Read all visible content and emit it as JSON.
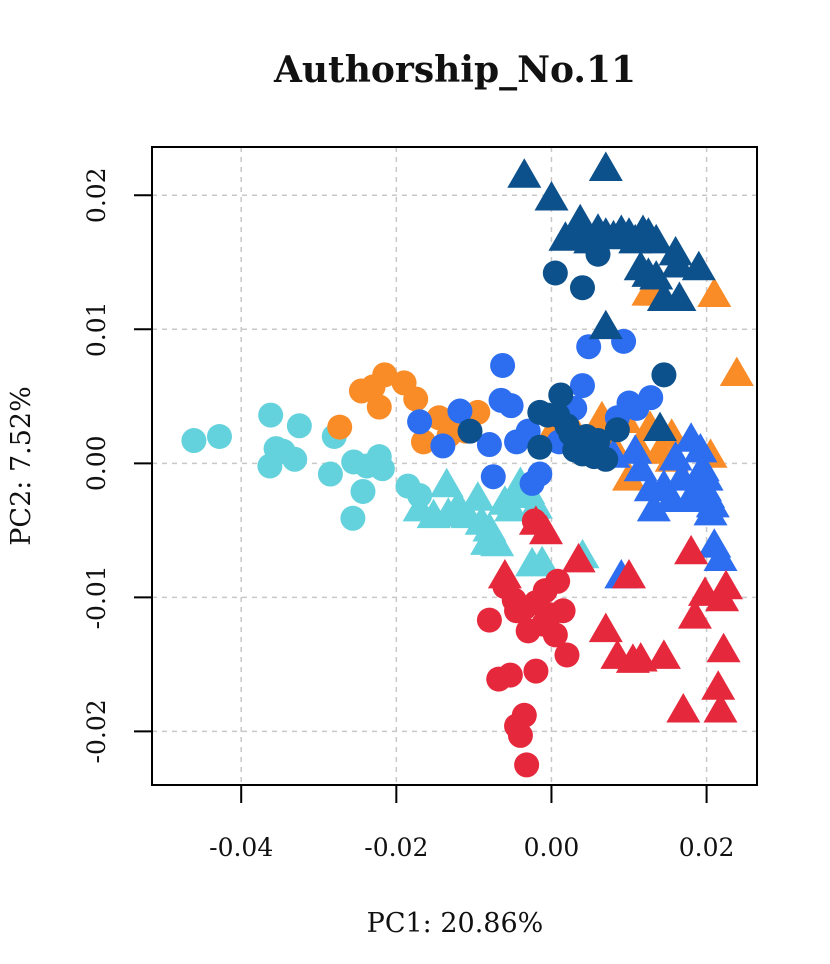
{
  "chart_data": {
    "type": "scatter",
    "title": "Authorship_No.11",
    "xlabel": "PC1: 20.86%",
    "ylabel": "PC2: 7.52%",
    "xlim": [
      -0.0515,
      0.0265
    ],
    "ylim": [
      -0.024,
      0.0236
    ],
    "xticks": [
      -0.04,
      -0.02,
      0.0,
      0.02
    ],
    "xtick_labels": [
      "-0.04",
      "-0.02",
      "0.00",
      "0.02"
    ],
    "yticks": [
      -0.02,
      -0.01,
      0.0,
      0.01,
      0.02
    ],
    "ytick_labels": [
      "-0.02",
      "-0.01",
      "0.00",
      "0.01",
      "0.02"
    ],
    "grid": true,
    "colors": {
      "cyan": "#64D2DC",
      "orange": "#FA8C28",
      "blue": "#2D6EF0",
      "navy": "#0C508C",
      "red": "#E6283C"
    },
    "series": [
      {
        "color": "#64D2DC",
        "marker": "circle",
        "points": [
          [
            -0.0461,
            0.0017
          ],
          [
            -0.0428,
            0.002
          ],
          [
            -0.0362,
            0.0036
          ],
          [
            -0.0355,
            0.0011
          ],
          [
            -0.0346,
            0.0009
          ],
          [
            -0.0363,
            -0.0002
          ],
          [
            -0.0331,
            0.0003
          ],
          [
            -0.0325,
            0.0028
          ],
          [
            -0.028,
            0.002
          ],
          [
            -0.0285,
            -0.0008
          ],
          [
            -0.0255,
            0.0001
          ],
          [
            -0.0238,
            -0.0002
          ],
          [
            -0.0222,
            0.0005
          ],
          [
            -0.0218,
            -0.0004
          ],
          [
            -0.0243,
            -0.0021
          ],
          [
            -0.0256,
            -0.0041
          ],
          [
            -0.0185,
            -0.0017
          ],
          [
            -0.017,
            -0.0024
          ]
        ]
      },
      {
        "color": "#64D2DC",
        "marker": "triangle",
        "points": [
          [
            -0.017,
            -0.0035
          ],
          [
            -0.0152,
            -0.004
          ],
          [
            -0.0133,
            -0.0039
          ],
          [
            -0.0135,
            -0.0017
          ],
          [
            -0.012,
            -0.0033
          ],
          [
            -0.0108,
            -0.004
          ],
          [
            -0.0095,
            -0.0027
          ],
          [
            -0.009,
            -0.0045
          ],
          [
            -0.008,
            -0.005
          ],
          [
            -0.007,
            -0.0061
          ],
          [
            -0.0083,
            -0.006
          ],
          [
            -0.006,
            -0.003
          ],
          [
            -0.0052,
            -0.0035
          ],
          [
            -0.0045,
            -0.0025
          ],
          [
            -0.004,
            -0.0016
          ],
          [
            -0.003,
            -0.0022
          ],
          [
            -0.002,
            -0.0033
          ],
          [
            -0.0025,
            -0.0076
          ],
          [
            -0.0012,
            -0.0075
          ],
          [
            0.004,
            -0.007
          ]
        ]
      },
      {
        "color": "#FA8C28",
        "marker": "circle",
        "points": [
          [
            -0.0273,
            0.0027
          ],
          [
            -0.0245,
            0.0054
          ],
          [
            -0.0215,
            0.0066
          ],
          [
            -0.023,
            0.0057
          ],
          [
            -0.0222,
            0.0042
          ],
          [
            -0.019,
            0.006
          ],
          [
            -0.0175,
            0.0048
          ],
          [
            -0.0145,
            0.0034
          ],
          [
            -0.0132,
            0.0021
          ],
          [
            -0.0165,
            0.0016
          ],
          [
            -0.0122,
            0.0035
          ],
          [
            -0.0095,
            0.0038
          ],
          [
            -0.011,
            0.0024
          ]
        ]
      },
      {
        "color": "#FA8C28",
        "marker": "triangle",
        "points": [
          [
            0.0,
            0.0022
          ],
          [
            0.0025,
            0.0029
          ],
          [
            0.0065,
            0.0033
          ],
          [
            0.008,
            0.0011
          ],
          [
            0.0095,
            0.0031
          ],
          [
            0.01,
            -0.0012
          ],
          [
            0.0112,
            0.0011
          ],
          [
            0.0127,
            0.0026
          ],
          [
            0.014,
            0.0008
          ],
          [
            0.0155,
            0.0002
          ],
          [
            0.0155,
            0.002
          ],
          [
            0.0125,
            0.0126
          ],
          [
            0.0135,
            0.0126
          ],
          [
            0.021,
            0.0125
          ],
          [
            0.0239,
            0.0066
          ],
          [
            0.0205,
            0.0005
          ]
        ]
      },
      {
        "color": "#2D6EF0",
        "marker": "circle",
        "points": [
          [
            -0.017,
            0.0031
          ],
          [
            -0.014,
            0.0013
          ],
          [
            -0.0118,
            0.0039
          ],
          [
            -0.008,
            0.0014
          ],
          [
            -0.0075,
            -0.001
          ],
          [
            -0.0065,
            0.0047
          ],
          [
            -0.0052,
            0.0043
          ],
          [
            -0.0063,
            0.0073
          ],
          [
            -0.0045,
            0.0016
          ],
          [
            -0.003,
            0.0024
          ],
          [
            -0.0025,
            -0.0015
          ],
          [
            0.001,
            0.0016
          ],
          [
            0.003,
            0.0041
          ],
          [
            0.004,
            0.0058
          ],
          [
            0.0048,
            0.0087
          ],
          [
            0.0067,
            0.0005
          ],
          [
            0.0085,
            0.0034
          ],
          [
            0.01,
            0.0045
          ],
          [
            0.011,
            0.0041
          ],
          [
            0.0128,
            0.0049
          ],
          [
            -0.0015,
            -0.0008
          ],
          [
            0.0093,
            0.0091
          ]
        ]
      },
      {
        "color": "#2D6EF0",
        "marker": "triangle",
        "points": [
          [
            0.0108,
            0.0008
          ],
          [
            0.0115,
            -0.0005
          ],
          [
            0.0128,
            -0.002
          ],
          [
            0.0132,
            -0.0035
          ],
          [
            0.0145,
            -0.0018
          ],
          [
            0.0155,
            -0.0028
          ],
          [
            0.016,
            0.0003
          ],
          [
            0.0168,
            -0.0012
          ],
          [
            0.0178,
            -0.0028
          ],
          [
            0.018,
            0.0017
          ],
          [
            0.0192,
            0.0009
          ],
          [
            0.0194,
            -0.0006
          ],
          [
            0.0198,
            -0.002
          ],
          [
            0.0202,
            -0.0025
          ],
          [
            0.0205,
            -0.0038
          ],
          [
            0.0208,
            -0.0032
          ],
          [
            0.021,
            -0.0062
          ],
          [
            0.0218,
            -0.0072
          ],
          [
            0.02,
            -0.0012
          ],
          [
            0.0195,
            -0.0005
          ],
          [
            0.009,
            -0.0085
          ],
          [
            0.008,
            0.0005
          ]
        ]
      },
      {
        "color": "#0C508C",
        "marker": "circle",
        "points": [
          [
            -0.0105,
            0.0024
          ],
          [
            -0.0015,
            0.0038
          ],
          [
            -0.0005,
            0.0036
          ],
          [
            0.0008,
            0.0036
          ],
          [
            0.0012,
            0.0051
          ],
          [
            -0.0015,
            0.0012
          ],
          [
            0.002,
            0.0028
          ],
          [
            0.0025,
            0.0022
          ],
          [
            0.003,
            0.001
          ],
          [
            0.0035,
            0.0013
          ],
          [
            0.0045,
            0.002
          ],
          [
            0.0055,
            0.0005
          ],
          [
            0.006,
            0.0017
          ],
          [
            0.007,
            0.0003
          ],
          [
            0.0085,
            0.0025
          ],
          [
            0.0005,
            0.0142
          ],
          [
            0.004,
            0.0131
          ],
          [
            0.006,
            0.0156
          ],
          [
            0.0145,
            0.0066
          ],
          [
            0.004,
            0.0007
          ]
        ]
      },
      {
        "color": "#0C508C",
        "marker": "triangle",
        "points": [
          [
            -0.0035,
            0.0214
          ],
          [
            0.007,
            0.0219
          ],
          [
            0.0,
            0.0197
          ],
          [
            0.0037,
            0.018
          ],
          [
            0.0018,
            0.0167
          ],
          [
            0.003,
            0.017
          ],
          [
            0.004,
            0.0172
          ],
          [
            0.005,
            0.0165
          ],
          [
            0.006,
            0.0173
          ],
          [
            0.007,
            0.017
          ],
          [
            0.008,
            0.0168
          ],
          [
            0.009,
            0.0172
          ],
          [
            0.01,
            0.017
          ],
          [
            0.0108,
            0.0165
          ],
          [
            0.0118,
            0.0172
          ],
          [
            0.0125,
            0.017
          ],
          [
            0.0135,
            0.0165
          ],
          [
            0.016,
            0.0156
          ],
          [
            0.0163,
            0.0147
          ],
          [
            0.0115,
            0.0145
          ],
          [
            0.0125,
            0.014
          ],
          [
            0.0135,
            0.0138
          ],
          [
            0.019,
            0.0145
          ],
          [
            0.0145,
            0.0122
          ],
          [
            0.0165,
            0.0122
          ],
          [
            0.007,
            0.0101
          ],
          [
            0.014,
            0.0025
          ]
        ]
      },
      {
        "color": "#E6283C",
        "marker": "circle",
        "points": [
          [
            -0.008,
            -0.0117
          ],
          [
            -0.0068,
            -0.0161
          ],
          [
            -0.0053,
            -0.0158
          ],
          [
            -0.0045,
            -0.011
          ],
          [
            -0.0035,
            -0.0108
          ],
          [
            -0.003,
            -0.0125
          ],
          [
            -0.002,
            -0.0104
          ],
          [
            -0.001,
            -0.012
          ],
          [
            -0.0002,
            -0.0113
          ],
          [
            0.0005,
            -0.0128
          ],
          [
            0.0015,
            -0.011
          ],
          [
            -0.002,
            -0.0155
          ],
          [
            0.002,
            -0.0143
          ],
          [
            -0.0045,
            -0.0196
          ],
          [
            -0.0035,
            -0.0188
          ],
          [
            -0.004,
            -0.0203
          ],
          [
            -0.0032,
            -0.0225
          ],
          [
            -0.0022,
            -0.0043
          ],
          [
            0.0008,
            -0.0088
          ],
          [
            -0.0048,
            -0.0102
          ],
          [
            -0.0008,
            -0.0095
          ],
          [
            -0.006,
            -0.0092
          ]
        ]
      },
      {
        "color": "#E6283C",
        "marker": "triangle",
        "points": [
          [
            -0.002,
            -0.0045
          ],
          [
            -0.0007,
            -0.0052
          ],
          [
            -0.006,
            -0.0085
          ],
          [
            0.0035,
            -0.0073
          ],
          [
            0.007,
            -0.0125
          ],
          [
            0.0085,
            -0.0145
          ],
          [
            0.0105,
            -0.0148
          ],
          [
            0.0115,
            -0.0147
          ],
          [
            0.0145,
            -0.0145
          ],
          [
            0.01,
            -0.0085
          ],
          [
            0.018,
            -0.0067
          ],
          [
            0.0185,
            -0.0115
          ],
          [
            0.0198,
            -0.0098
          ],
          [
            0.022,
            -0.0102
          ],
          [
            0.0225,
            -0.0093
          ],
          [
            0.0222,
            -0.014
          ],
          [
            0.0215,
            -0.0168
          ],
          [
            0.0218,
            -0.0185
          ],
          [
            0.017,
            -0.0185
          ]
        ]
      }
    ]
  }
}
